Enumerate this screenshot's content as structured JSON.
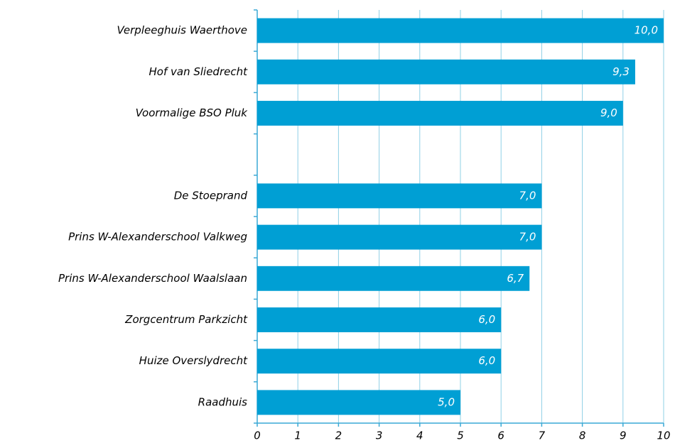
{
  "chart_data": {
    "type": "bar",
    "orientation": "horizontal",
    "categories": [
      "Verpleeghuis Waerthove",
      "Hof van Sliedrecht",
      "Voormalige BSO Pluk",
      null,
      "De Stoeprand",
      "Prins W-Alexanderschool Valkweg",
      "Prins W-Alexanderschool Waalslaan",
      "Zorgcentrum Parkzicht",
      "Huize Overslydrecht",
      "Raadhuis"
    ],
    "values": [
      10.0,
      9.3,
      9.0,
      null,
      7.0,
      7.0,
      6.7,
      6.0,
      6.0,
      5.0
    ],
    "value_labels": [
      "10,0",
      "9,3",
      "9,0",
      null,
      "7,0",
      "7,0",
      "6,7",
      "6,0",
      "6,0",
      "5,0"
    ],
    "color": "#009fd4",
    "xlim": [
      0,
      10
    ],
    "xticks": [
      0,
      1,
      2,
      3,
      4,
      5,
      6,
      7,
      8,
      9,
      10
    ],
    "grid": true
  }
}
